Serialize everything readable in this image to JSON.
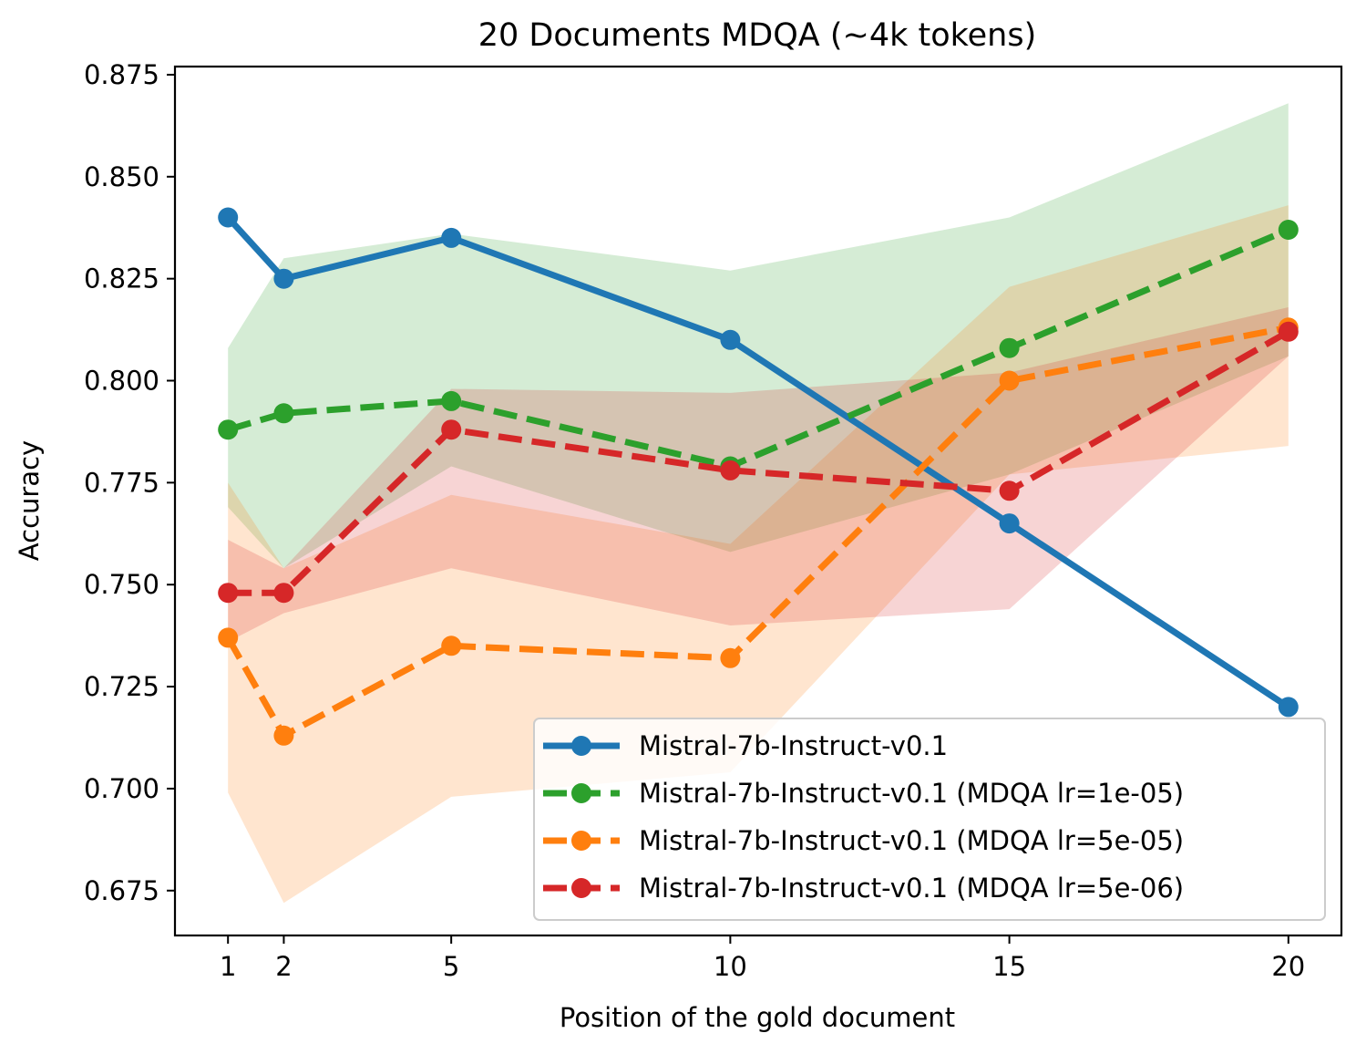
{
  "chart_data": {
    "type": "line",
    "title": "20 Documents MDQA (~4k tokens)",
    "xlabel": "Position of the gold document",
    "ylabel": "Accuracy",
    "x": [
      1,
      2,
      5,
      10,
      15,
      20
    ],
    "xticks": [
      "1",
      "2",
      "5",
      "10",
      "15",
      "20"
    ],
    "xlim": [
      0.05,
      20.95
    ],
    "yticks": [
      "0.675",
      "0.700",
      "0.725",
      "0.750",
      "0.775",
      "0.800",
      "0.825",
      "0.850",
      "0.875"
    ],
    "ylim": [
      0.664,
      0.877
    ],
    "grid": false,
    "legend_position": "lower-right",
    "series": [
      {
        "name": "Mistral-7b-Instruct-v0.1",
        "color": "#1f77b4",
        "style": "solid",
        "values": [
          0.84,
          0.825,
          0.835,
          0.81,
          0.765,
          0.72
        ],
        "band": null
      },
      {
        "name": "Mistral-7b-Instruct-v0.1 (MDQA lr=1e-05)",
        "color": "#2ca02c",
        "style": "dashed",
        "values": [
          0.788,
          0.792,
          0.795,
          0.779,
          0.808,
          0.837
        ],
        "band": {
          "lower": [
            0.769,
            0.754,
            0.779,
            0.758,
            0.777,
            0.806
          ],
          "upper": [
            0.808,
            0.83,
            0.836,
            0.827,
            0.84,
            0.868
          ],
          "opacity": 0.2
        }
      },
      {
        "name": "Mistral-7b-Instruct-v0.1 (MDQA lr=5e-05)",
        "color": "#ff7f0e",
        "style": "dashed",
        "values": [
          0.737,
          0.713,
          0.735,
          0.732,
          0.8,
          0.813
        ],
        "band": {
          "lower": [
            0.699,
            0.672,
            0.698,
            0.704,
            0.777,
            0.784
          ],
          "upper": [
            0.775,
            0.754,
            0.772,
            0.76,
            0.823,
            0.843
          ],
          "opacity": 0.2
        }
      },
      {
        "name": "Mistral-7b-Instruct-v0.1 (MDQA lr=5e-06)",
        "color": "#d62728",
        "style": "dashed",
        "values": [
          0.748,
          0.748,
          0.788,
          0.778,
          0.773,
          0.812
        ],
        "band": {
          "lower": [
            0.736,
            0.743,
            0.754,
            0.74,
            0.744,
            0.806
          ],
          "upper": [
            0.761,
            0.754,
            0.798,
            0.797,
            0.802,
            0.818
          ],
          "opacity": 0.2
        }
      }
    ]
  }
}
